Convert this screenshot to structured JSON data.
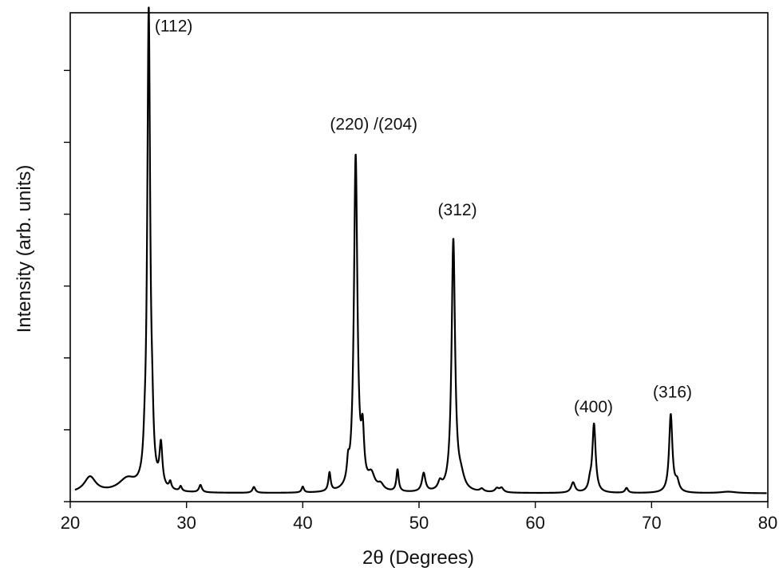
{
  "chart_data": {
    "type": "line",
    "title": "",
    "xlabel": "2θ (Degrees)",
    "ylabel": "Intensity (arb. units)",
    "xlim": [
      20,
      80
    ],
    "ylim": [
      0,
      100
    ],
    "x_ticks": [
      20,
      30,
      40,
      50,
      60,
      70,
      80
    ],
    "x_tick_labels": [
      "20",
      "30",
      "40",
      "50",
      "60",
      "70",
      "80"
    ],
    "y_ticks": [
      0,
      14.7,
      29.4,
      44.1,
      58.8,
      73.5,
      88.2
    ],
    "y_tick_labels_shown": false,
    "grid": false,
    "legend": "none",
    "line_color": "#000000",
    "baseline": 1.7,
    "peaks": [
      {
        "x": 21.7,
        "height": 3.2,
        "width": 0.6
      },
      {
        "x": 24.9,
        "height": 2.6,
        "width": 0.9
      },
      {
        "x": 26.4,
        "height": 3.4,
        "width": 0.12
      },
      {
        "x": 26.75,
        "height": 97.7,
        "width": 0.15
      },
      {
        "x": 27.05,
        "height": 7.0,
        "width": 0.12
      },
      {
        "x": 27.8,
        "height": 8.5,
        "width": 0.15
      },
      {
        "x": 28.6,
        "height": 1.5,
        "width": 0.12
      },
      {
        "x": 29.5,
        "height": 1.0,
        "width": 0.12
      },
      {
        "x": 31.2,
        "height": 1.5,
        "width": 0.15
      },
      {
        "x": 35.8,
        "height": 1.2,
        "width": 0.15
      },
      {
        "x": 40.0,
        "height": 1.2,
        "width": 0.12
      },
      {
        "x": 42.3,
        "height": 3.8,
        "width": 0.12
      },
      {
        "x": 43.9,
        "height": 3.6,
        "width": 0.12
      },
      {
        "x": 44.55,
        "height": 68.5,
        "width": 0.18
      },
      {
        "x": 45.15,
        "height": 9.8,
        "width": 0.15
      },
      {
        "x": 45.9,
        "height": 3.0,
        "width": 0.35
      },
      {
        "x": 46.7,
        "height": 1.2,
        "width": 0.3
      },
      {
        "x": 48.15,
        "height": 4.5,
        "width": 0.12
      },
      {
        "x": 50.4,
        "height": 3.8,
        "width": 0.18
      },
      {
        "x": 51.8,
        "height": 1.6,
        "width": 0.2
      },
      {
        "x": 52.95,
        "height": 51.5,
        "width": 0.18
      },
      {
        "x": 53.6,
        "height": 2.5,
        "width": 0.35
      },
      {
        "x": 55.4,
        "height": 0.6,
        "width": 0.2
      },
      {
        "x": 56.7,
        "height": 0.8,
        "width": 0.2
      },
      {
        "x": 57.1,
        "height": 0.9,
        "width": 0.2
      },
      {
        "x": 63.25,
        "height": 2.1,
        "width": 0.2
      },
      {
        "x": 64.7,
        "height": 1.6,
        "width": 0.15
      },
      {
        "x": 65.05,
        "height": 14.0,
        "width": 0.17
      },
      {
        "x": 67.85,
        "height": 1.0,
        "width": 0.15
      },
      {
        "x": 71.65,
        "height": 16.0,
        "width": 0.17
      },
      {
        "x": 72.2,
        "height": 2.0,
        "width": 0.2
      },
      {
        "x": 76.6,
        "height": 0.3,
        "width": 0.8
      }
    ],
    "annotations": [
      {
        "text": "(112)",
        "x": 28.9,
        "y": 96.2,
        "anchor": "middle"
      },
      {
        "text": "(220) /(204)",
        "x": 46.1,
        "y": 76.1,
        "anchor": "middle"
      },
      {
        "text": "(312)",
        "x": 53.3,
        "y": 58.6,
        "anchor": "middle"
      },
      {
        "text": "(400)",
        "x": 65.0,
        "y": 18.3,
        "anchor": "middle"
      },
      {
        "text": "(316)",
        "x": 71.8,
        "y": 21.3,
        "anchor": "middle"
      }
    ]
  }
}
